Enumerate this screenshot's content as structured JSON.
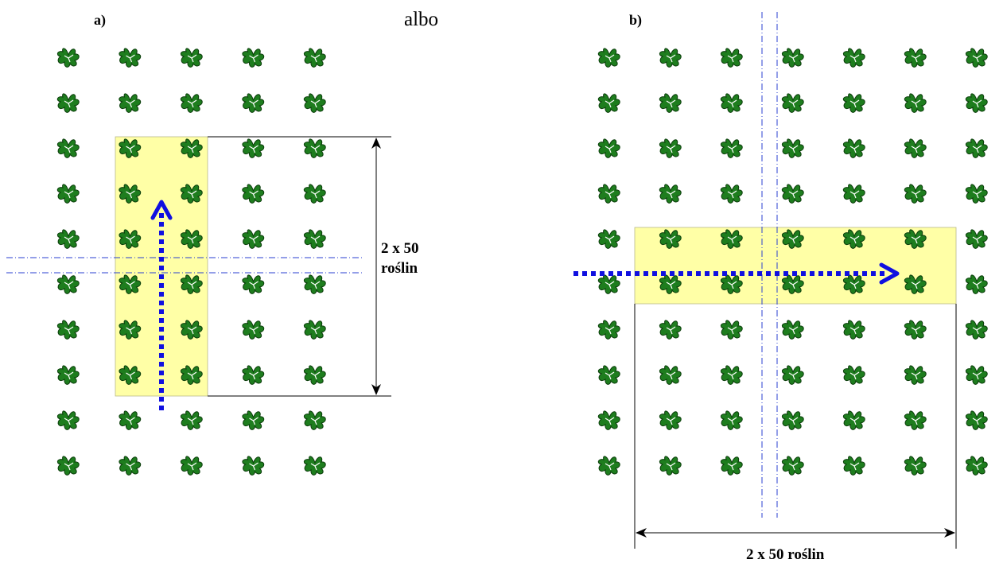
{
  "panel_a": {
    "label": "a)",
    "dimension_label_line1": "2 x 50",
    "dimension_label_line2": "roślin",
    "grid": {
      "columns": 5,
      "rows": 10
    }
  },
  "connector_text": "albo",
  "panel_b": {
    "label": "b)",
    "dimension_label": "2 x 50 roślin",
    "grid": {
      "columns": 7,
      "rows": 10
    }
  },
  "colors": {
    "plant_fill": "#1e7d1e",
    "plant_stroke": "#0b3d0b",
    "highlight_fill": "#ffffa6",
    "arrow_color": "#1010e0",
    "guide_line_color": "#2a3fd0"
  },
  "icons": {
    "plant": "plant-icon"
  }
}
